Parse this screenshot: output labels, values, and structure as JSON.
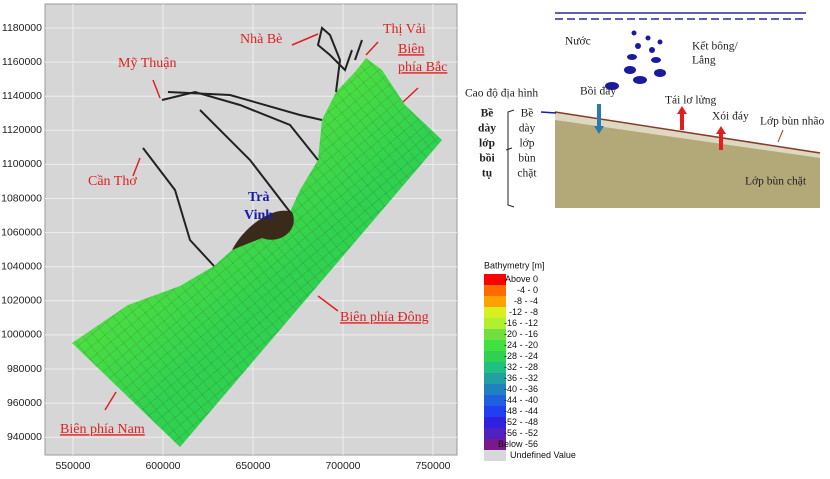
{
  "map": {
    "x_ticks": [
      550000,
      600000,
      650000,
      700000,
      750000
    ],
    "y_ticks": [
      1180000,
      1160000,
      1140000,
      1120000,
      1100000,
      1080000,
      1060000,
      1040000,
      1020000,
      1000000,
      980000,
      960000,
      940000
    ],
    "labels": [
      {
        "lines": [
          "Nhà Bè"
        ],
        "style": "red"
      },
      {
        "lines": [
          "Thị Vải"
        ],
        "style": "red"
      },
      {
        "lines": [
          "Biên",
          "phía Bắc"
        ],
        "style": "red-u"
      },
      {
        "lines": [
          "Mỹ Thuận"
        ],
        "style": "red"
      },
      {
        "lines": [
          "Cần Thơ"
        ],
        "style": "red"
      },
      {
        "lines": [
          "Trà",
          "Vinh"
        ],
        "style": "blue"
      },
      {
        "lines": [
          "Biên phía Đông"
        ],
        "style": "red-u"
      },
      {
        "lines": [
          "Biên phía Nam"
        ],
        "style": "red-u"
      }
    ]
  },
  "legend": {
    "title": "Bathymetry [m]",
    "items": [
      {
        "label": "Above  0",
        "color": "#ff0000"
      },
      {
        "label": "-4 -  0",
        "color": "#ff6a00"
      },
      {
        "label": "-8 -  -4",
        "color": "#ffa200"
      },
      {
        "label": "-12 -  -8",
        "color": "#d8f020"
      },
      {
        "label": "-16 - -12",
        "color": "#b0f030"
      },
      {
        "label": "-20 - -16",
        "color": "#70e040"
      },
      {
        "label": "-24 - -20",
        "color": "#40e040"
      },
      {
        "label": "-28 - -24",
        "color": "#30d050"
      },
      {
        "label": "-32 - -28",
        "color": "#20c080"
      },
      {
        "label": "-36 - -32",
        "color": "#20a0a0"
      },
      {
        "label": "-40 - -36",
        "color": "#2080c0"
      },
      {
        "label": "-44 - -40",
        "color": "#2060e0"
      },
      {
        "label": "-48 - -44",
        "color": "#2040f0"
      },
      {
        "label": "-52 - -48",
        "color": "#3020e0"
      },
      {
        "label": "-56 - -52",
        "color": "#5020c0"
      },
      {
        "label": "Below -56",
        "color": "#7a1a8a"
      },
      {
        "label": "Undefined Value",
        "color": "#d8d8d8"
      }
    ]
  },
  "diagram": {
    "water": "Nước",
    "floc": [
      "Kết bông/",
      "Lắng"
    ],
    "topography": "Cao độ địa hình",
    "deposition": "Bồi đây",
    "resuspension": "Tái lơ lửng",
    "erosion": "Xói đáy",
    "soft_mud": "Lớp bùn nhão",
    "firm_mud": "Lớp bùn chặt",
    "deposit_thickness": [
      "Bề",
      "dày",
      "lớp",
      "bồi",
      "tụ"
    ],
    "firm_thickness": [
      "Bề",
      "dày",
      "lớp",
      "bùn",
      "chặt"
    ]
  }
}
